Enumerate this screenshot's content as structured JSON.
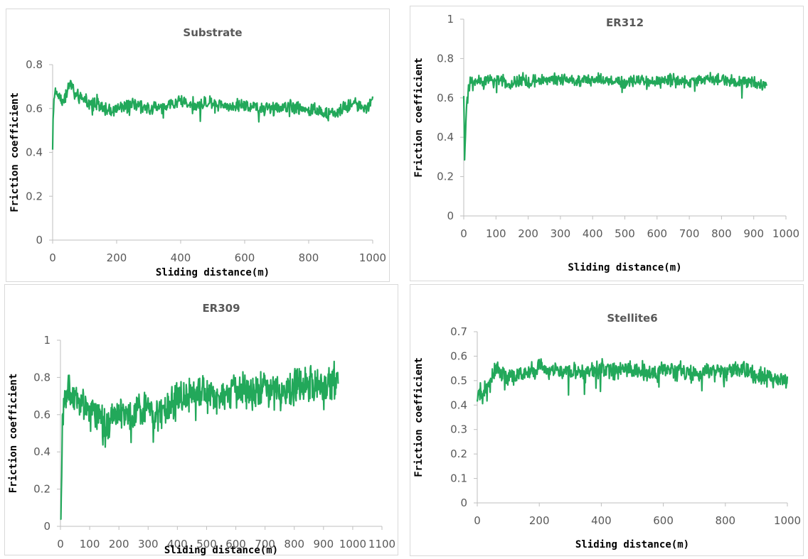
{
  "line_color": "#22a85a",
  "chart_data": [
    {
      "type": "line",
      "title": "Substrate",
      "xlabel": "Sliding distance(m)",
      "ylabel": "Friction coefficient",
      "xlim": [
        0,
        1000
      ],
      "ylim": [
        0,
        0.8
      ],
      "xticks": [
        "0",
        "200",
        "400",
        "600",
        "800",
        "1000"
      ],
      "yticks": [
        "0",
        "0.2",
        "0.4",
        "0.6",
        "0.8"
      ],
      "grid": false,
      "series": [
        {
          "x": [
            0,
            2,
            5,
            10,
            20,
            30,
            40,
            50,
            60,
            70,
            80,
            100,
            120,
            140,
            160,
            180,
            200,
            250,
            300,
            350,
            400,
            450,
            500,
            550,
            600,
            650,
            700,
            750,
            800,
            850,
            880,
            900,
            950,
            980,
            1000
          ],
          "values": [
            0.43,
            0.58,
            0.65,
            0.67,
            0.66,
            0.63,
            0.66,
            0.7,
            0.72,
            0.66,
            0.65,
            0.64,
            0.62,
            0.63,
            0.6,
            0.59,
            0.6,
            0.62,
            0.6,
            0.61,
            0.64,
            0.61,
            0.63,
            0.61,
            0.62,
            0.6,
            0.6,
            0.61,
            0.6,
            0.58,
            0.57,
            0.6,
            0.62,
            0.6,
            0.64
          ]
        }
      ]
    },
    {
      "type": "line",
      "title": "ER312",
      "xlabel": "Sliding distance(m)",
      "ylabel": "Friction coefficient",
      "xlim": [
        0,
        1000
      ],
      "ylim": [
        0,
        1
      ],
      "xticks": [
        "0",
        "100",
        "200",
        "300",
        "400",
        "500",
        "600",
        "700",
        "800",
        "900",
        "1000"
      ],
      "yticks": [
        "0",
        "0.2",
        "0.4",
        "0.6",
        "0.8",
        "1"
      ],
      "grid": false,
      "series": [
        {
          "x": [
            0,
            3,
            6,
            10,
            20,
            40,
            60,
            80,
            100,
            120,
            140,
            160,
            180,
            200,
            250,
            300,
            350,
            400,
            450,
            500,
            550,
            600,
            650,
            700,
            750,
            800,
            850,
            900,
            940
          ],
          "values": [
            0.6,
            0.26,
            0.45,
            0.62,
            0.68,
            0.69,
            0.67,
            0.7,
            0.68,
            0.69,
            0.66,
            0.68,
            0.7,
            0.68,
            0.69,
            0.7,
            0.68,
            0.7,
            0.69,
            0.68,
            0.69,
            0.68,
            0.69,
            0.68,
            0.7,
            0.69,
            0.68,
            0.68,
            0.66
          ]
        }
      ]
    },
    {
      "type": "line",
      "title": "ER309",
      "xlabel": "Sliding distance(m)",
      "ylabel": "Friction coefficient",
      "xlim": [
        0,
        1100
      ],
      "ylim": [
        0,
        1
      ],
      "xticks": [
        "0",
        "100",
        "200",
        "300",
        "400",
        "500",
        "600",
        "700",
        "800",
        "900",
        "1000",
        "1100"
      ],
      "yticks": [
        "0",
        "0.2",
        "0.4",
        "0.6",
        "0.8",
        "1"
      ],
      "grid": false,
      "series": [
        {
          "x": [
            0,
            3,
            6,
            10,
            20,
            30,
            50,
            80,
            100,
            120,
            140,
            160,
            180,
            200,
            230,
            260,
            300,
            330,
            360,
            380,
            400,
            450,
            500,
            550,
            600,
            650,
            700,
            750,
            800,
            850,
            900,
            950
          ],
          "values": [
            0.05,
            0.2,
            0.5,
            0.65,
            0.7,
            0.72,
            0.7,
            0.66,
            0.62,
            0.6,
            0.55,
            0.5,
            0.6,
            0.62,
            0.6,
            0.62,
            0.63,
            0.6,
            0.62,
            0.65,
            0.7,
            0.7,
            0.72,
            0.7,
            0.73,
            0.72,
            0.74,
            0.72,
            0.75,
            0.76,
            0.74,
            0.78
          ]
        }
      ]
    },
    {
      "type": "line",
      "title": "Stellite6",
      "xlabel": "Sliding distance(m)",
      "ylabel": "Friction coefficient",
      "xlim": [
        0,
        1000
      ],
      "ylim": [
        0,
        0.7
      ],
      "xticks": [
        "0",
        "200",
        "400",
        "600",
        "800",
        "1000"
      ],
      "yticks": [
        "0",
        "0.1",
        "0.2",
        "0.3",
        "0.4",
        "0.5",
        "0.6",
        "0.7"
      ],
      "grid": false,
      "series": [
        {
          "x": [
            0,
            10,
            20,
            40,
            60,
            80,
            100,
            150,
            200,
            250,
            300,
            350,
            400,
            450,
            500,
            550,
            600,
            650,
            700,
            750,
            800,
            850,
            900,
            950,
            1000
          ],
          "values": [
            0.45,
            0.46,
            0.45,
            0.48,
            0.55,
            0.53,
            0.52,
            0.53,
            0.55,
            0.54,
            0.54,
            0.53,
            0.55,
            0.54,
            0.55,
            0.53,
            0.54,
            0.54,
            0.53,
            0.54,
            0.53,
            0.55,
            0.52,
            0.51,
            0.5
          ]
        }
      ]
    }
  ]
}
